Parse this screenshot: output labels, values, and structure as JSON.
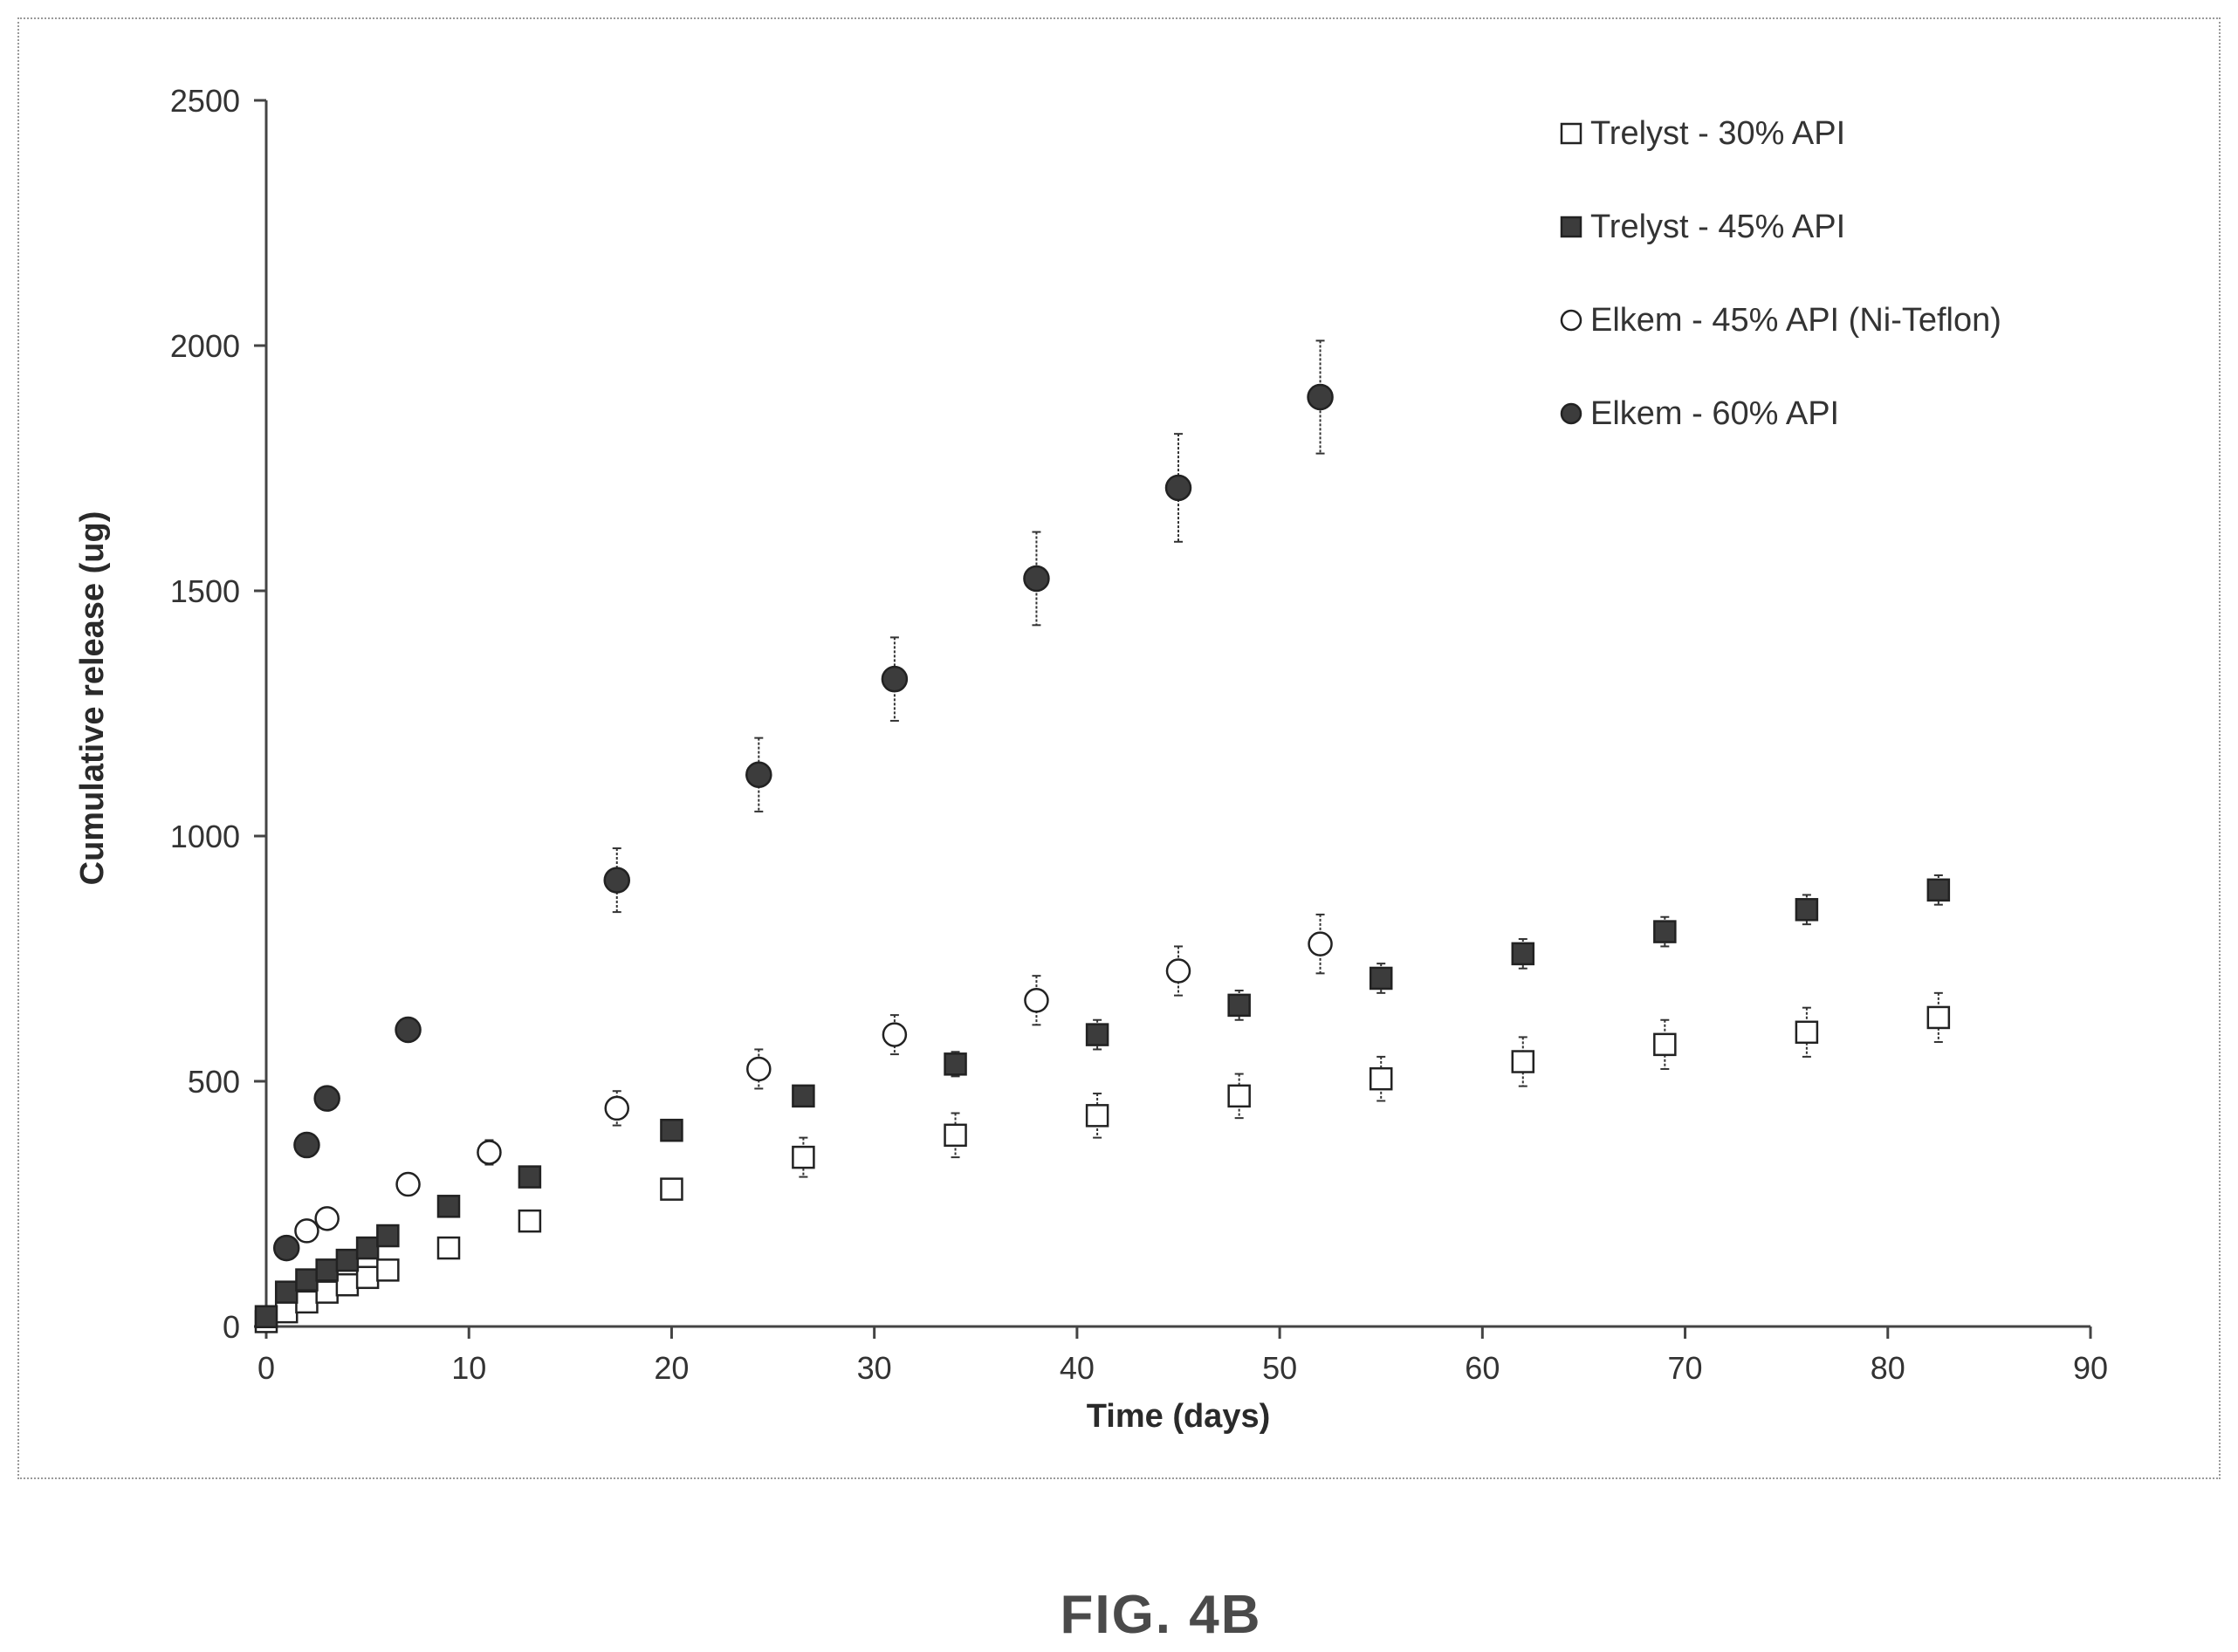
{
  "figure_label": "FIG. 4B",
  "colors": {
    "marker_fill_light": "#ffffff",
    "marker_fill_dark": "#3c3c3c",
    "marker_stroke": "#222222",
    "axis": "#444444",
    "error_bar": "#333333"
  },
  "chart_data": {
    "type": "scatter",
    "xlabel": "Time (days)",
    "ylabel": "Cumulative release (ug)",
    "xlim": [
      0,
      90
    ],
    "ylim": [
      0,
      2500
    ],
    "xticks": [
      "0",
      "10",
      "20",
      "30",
      "40",
      "50",
      "60",
      "70",
      "80",
      "90"
    ],
    "yticks": [
      "0",
      "500",
      "1000",
      "1500",
      "2000",
      "2500"
    ],
    "grid": false,
    "error_bars": true,
    "legend_position": "top-right",
    "series": [
      {
        "name": "Trelyst - 30% API",
        "marker": "square",
        "filled": false,
        "x": [
          0,
          1,
          2,
          3,
          4,
          5,
          6,
          9,
          13,
          20,
          26.5,
          34,
          41,
          48,
          55,
          62,
          69,
          76,
          82.5
        ],
        "y": [
          10,
          30,
          50,
          70,
          85,
          100,
          115,
          160,
          215,
          280,
          345,
          390,
          430,
          470,
          505,
          540,
          575,
          600,
          630
        ],
        "err": [
          8,
          10,
          10,
          10,
          10,
          12,
          12,
          15,
          18,
          20,
          40,
          45,
          45,
          45,
          45,
          50,
          50,
          50,
          50
        ]
      },
      {
        "name": "Trelyst - 45% API",
        "marker": "square",
        "filled": true,
        "x": [
          0,
          1,
          2,
          3,
          4,
          5,
          6,
          9,
          13,
          20,
          26.5,
          34,
          41,
          48,
          55,
          62,
          69,
          76,
          82.5
        ],
        "y": [
          20,
          70,
          95,
          115,
          135,
          160,
          185,
          245,
          305,
          400,
          470,
          535,
          595,
          655,
          710,
          760,
          805,
          850,
          890
        ],
        "err": [
          5,
          10,
          10,
          10,
          10,
          10,
          10,
          20,
          15,
          15,
          15,
          25,
          30,
          30,
          30,
          30,
          30,
          30,
          30
        ]
      },
      {
        "name": "Elkem - 45% API (Ni-Teflon)",
        "marker": "circle",
        "filled": false,
        "x": [
          2,
          3,
          7,
          11,
          17.3,
          24.3,
          31,
          38,
          45,
          52
        ],
        "y": [
          195,
          220,
          290,
          355,
          445,
          525,
          595,
          665,
          725,
          780
        ],
        "err": [
          15,
          20,
          20,
          25,
          35,
          40,
          40,
          50,
          50,
          60
        ]
      },
      {
        "name": "Elkem - 60% API",
        "marker": "circle",
        "filled": true,
        "x": [
          1,
          2,
          3,
          7,
          17.3,
          24.3,
          31,
          38,
          45,
          52
        ],
        "y": [
          160,
          370,
          465,
          605,
          910,
          1125,
          1320,
          1525,
          1710,
          1895
        ],
        "err": [
          10,
          15,
          15,
          15,
          65,
          75,
          85,
          95,
          110,
          115
        ]
      }
    ]
  }
}
